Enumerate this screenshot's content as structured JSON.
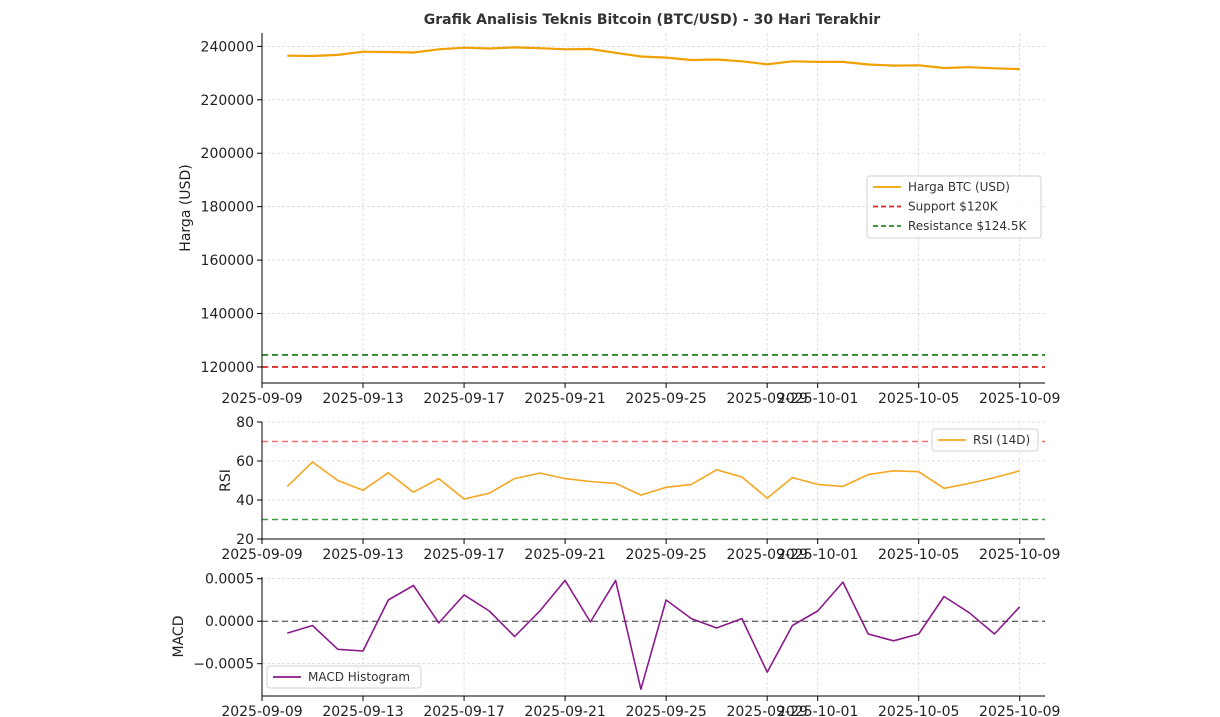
{
  "chart_data": [
    {
      "type": "line",
      "title": "Grafik Analisis Teknis Bitcoin (BTC/USD) - 30 Hari Terakhir",
      "xlabel": "",
      "ylabel": "Harga (USD)",
      "xlim": [
        "2025-09-09",
        "2025-10-10"
      ],
      "ylim": [
        114000,
        245000
      ],
      "yticks": [
        120000,
        140000,
        160000,
        180000,
        200000,
        220000,
        240000
      ],
      "xticks": [
        "2025-09-09",
        "2025-09-13",
        "2025-09-17",
        "2025-09-21",
        "2025-09-25",
        "2025-09-29",
        "2025-10-01",
        "2025-10-05",
        "2025-10-09"
      ],
      "grid": true,
      "legend_position": "center-right",
      "x": [
        "2025-09-10",
        "2025-09-11",
        "2025-09-12",
        "2025-09-13",
        "2025-09-14",
        "2025-09-15",
        "2025-09-16",
        "2025-09-17",
        "2025-09-18",
        "2025-09-19",
        "2025-09-20",
        "2025-09-21",
        "2025-09-22",
        "2025-09-23",
        "2025-09-24",
        "2025-09-25",
        "2025-09-26",
        "2025-09-27",
        "2025-09-28",
        "2025-09-29",
        "2025-09-30",
        "2025-10-01",
        "2025-10-02",
        "2025-10-03",
        "2025-10-04",
        "2025-10-05",
        "2025-10-06",
        "2025-10-07",
        "2025-10-08",
        "2025-10-09"
      ],
      "series": [
        {
          "name": "Harga BTC (USD)",
          "color": "#f0a000",
          "style": "solid",
          "values": [
            236500,
            236400,
            236800,
            238000,
            237900,
            237700,
            238900,
            239500,
            239200,
            239600,
            239300,
            238900,
            239000,
            237600,
            236200,
            235800,
            234900,
            235100,
            234400,
            233300,
            234400,
            234200,
            234200,
            233200,
            232800,
            232900,
            231900,
            232200,
            231800,
            231500
          ]
        },
        {
          "name": "Support $120K",
          "color": "#e02020",
          "style": "dashed",
          "hline": 120000
        },
        {
          "name": "Resistance $124.5K",
          "color": "#2a8a2a",
          "style": "dashed",
          "hline": 124500
        }
      ]
    },
    {
      "type": "line",
      "title": "",
      "xlabel": "",
      "ylabel": "RSI",
      "ylim": [
        20,
        80
      ],
      "yticks": [
        20,
        40,
        60,
        80
      ],
      "xticks": [
        "2025-09-09",
        "2025-09-13",
        "2025-09-17",
        "2025-09-21",
        "2025-09-25",
        "2025-09-29",
        "2025-10-01",
        "2025-10-05",
        "2025-10-09"
      ],
      "grid": true,
      "legend_position": "top-right",
      "hlines": [
        {
          "value": 70,
          "color": "#f07070"
        },
        {
          "value": 30,
          "color": "#40a040"
        }
      ],
      "series": [
        {
          "name": "RSI (14D)",
          "color": "#f5a623",
          "values": [
            47,
            59.5,
            50,
            45,
            54,
            44,
            51,
            40.5,
            43.5,
            51,
            53.8,
            51,
            49.5,
            48.5,
            42.5,
            46.5,
            48,
            55.5,
            51.8,
            41,
            51.5,
            48,
            47,
            53,
            55,
            54.5,
            46,
            48.5,
            51.5,
            55
          ]
        }
      ]
    },
    {
      "type": "line",
      "title": "",
      "xlabel": "",
      "ylabel": "MACD",
      "ylim": [
        -0.00088,
        0.00052
      ],
      "yticks": [
        -0.0005,
        0.0,
        0.0005
      ],
      "ytick_labels": [
        "−0.0005",
        "0.0000",
        "0.0005"
      ],
      "xticks": [
        "2025-09-09",
        "2025-09-13",
        "2025-09-17",
        "2025-09-21",
        "2025-09-25",
        "2025-09-29",
        "2025-10-01",
        "2025-10-05",
        "2025-10-09"
      ],
      "grid": true,
      "legend_position": "bottom-left",
      "hlines": [
        {
          "value": 0,
          "color": "#333333"
        }
      ],
      "series": [
        {
          "name": "MACD Histogram",
          "color": "#8b1a8b",
          "values": [
            -0.00014,
            -5e-05,
            -0.00033,
            -0.00035,
            0.00025,
            0.00042,
            -2e-05,
            0.00031,
            0.00012,
            -0.00018,
            0.00012,
            0.00048,
            -1e-05,
            0.00048,
            -0.0008,
            0.00025,
            3e-05,
            -8e-05,
            3e-05,
            -0.0006,
            -5e-05,
            0.00012,
            0.00046,
            -0.00015,
            -0.00023,
            -0.00015,
            0.00029,
            0.0001,
            -0.00015,
            0.00017
          ]
        }
      ]
    }
  ]
}
